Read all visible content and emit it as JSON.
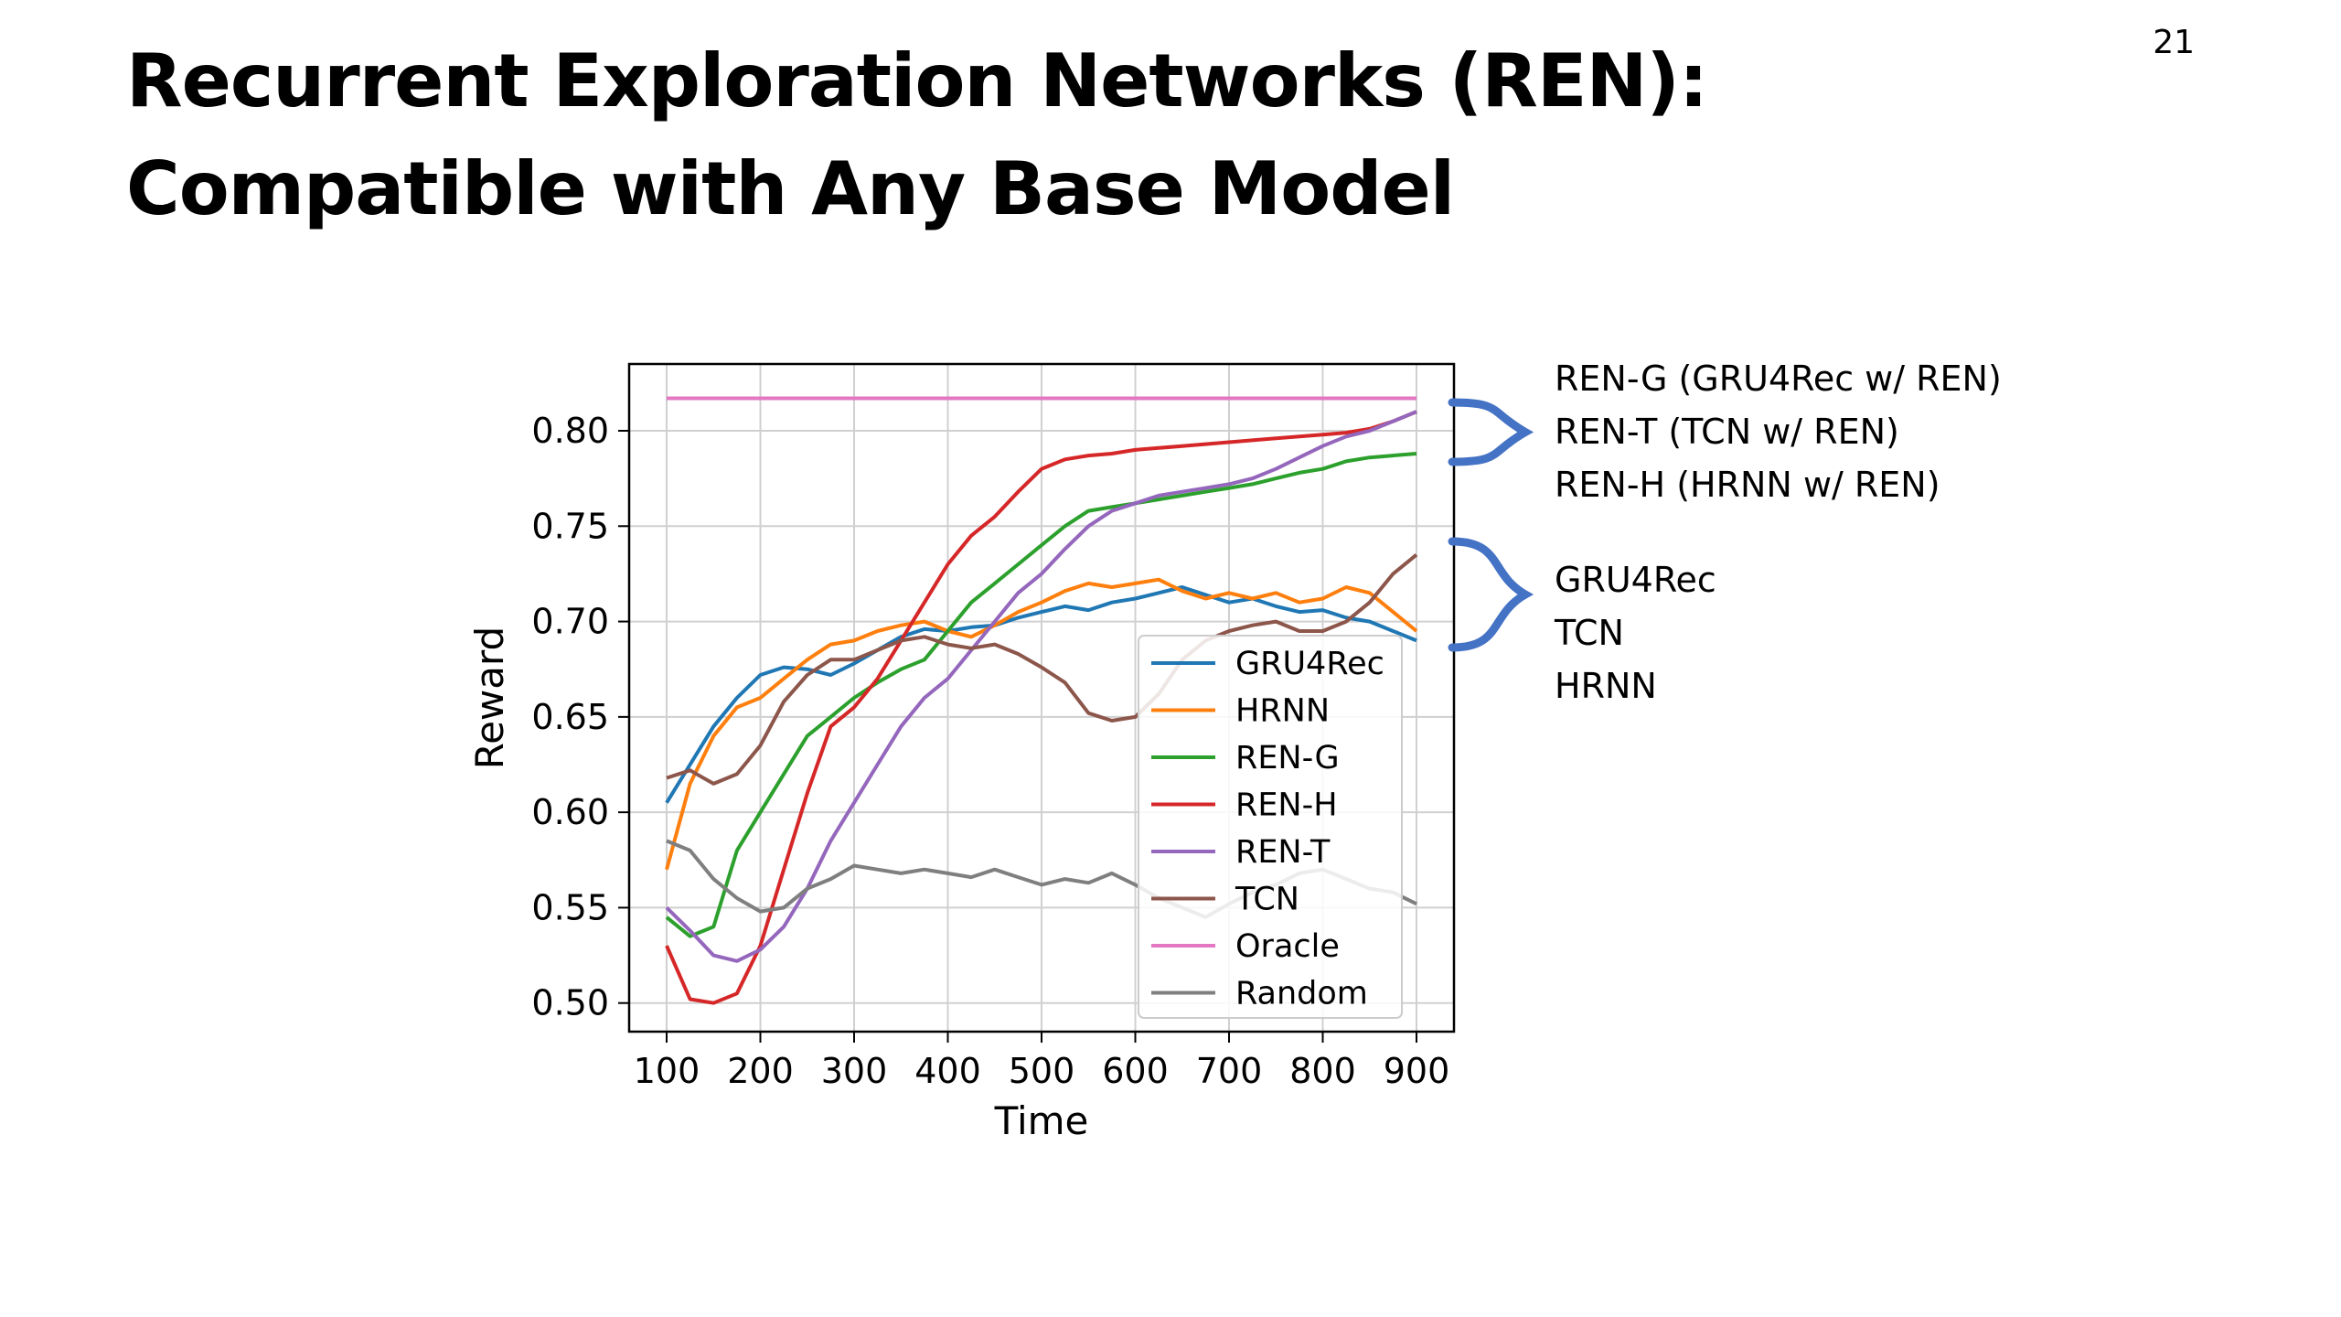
{
  "slide": {
    "title_lines": [
      "Recurrent Exploration Networks (REN):",
      "Compatible with Any Base Model"
    ],
    "page_number": "21"
  },
  "annotations": {
    "ren_group": [
      "REN-G (GRU4Rec w/ REN)",
      "REN-T (TCN w/ REN)",
      "REN-H (HRNN w/ REN)"
    ],
    "base_group": [
      "GRU4Rec",
      "TCN",
      "HRNN"
    ],
    "brace_color": "#4472C4"
  },
  "chart_data": {
    "type": "line",
    "xlabel": "Time",
    "ylabel": "Reward",
    "xlim": [
      60,
      940
    ],
    "ylim": [
      0.485,
      0.835
    ],
    "xticks": [
      100,
      200,
      300,
      400,
      500,
      600,
      700,
      800,
      900
    ],
    "xtick_labels": [
      "100",
      "200",
      "300",
      "400",
      "500",
      "600",
      "700",
      "800",
      "900"
    ],
    "yticks": [
      0.5,
      0.55,
      0.6,
      0.65,
      0.7,
      0.75,
      0.8
    ],
    "ytick_labels": [
      "0.50",
      "0.55",
      "0.60",
      "0.65",
      "0.70",
      "0.75",
      "0.80"
    ],
    "grid": true,
    "legend_position": "lower-right",
    "x": [
      100,
      125,
      150,
      175,
      200,
      225,
      250,
      275,
      300,
      325,
      350,
      375,
      400,
      425,
      450,
      475,
      500,
      525,
      550,
      575,
      600,
      625,
      650,
      675,
      700,
      725,
      750,
      775,
      800,
      825,
      850,
      875,
      900
    ],
    "series": [
      {
        "name": "GRU4Rec",
        "color": "#1f77b4",
        "values": [
          0.605,
          0.625,
          0.645,
          0.66,
          0.672,
          0.676,
          0.675,
          0.672,
          0.678,
          0.685,
          0.692,
          0.696,
          0.695,
          0.697,
          0.698,
          0.702,
          0.705,
          0.708,
          0.706,
          0.71,
          0.712,
          0.715,
          0.718,
          0.714,
          0.71,
          0.712,
          0.708,
          0.705,
          0.706,
          0.702,
          0.7,
          0.695,
          0.69
        ]
      },
      {
        "name": "HRNN",
        "color": "#ff7f0e",
        "values": [
          0.57,
          0.615,
          0.64,
          0.655,
          0.66,
          0.67,
          0.68,
          0.688,
          0.69,
          0.695,
          0.698,
          0.7,
          0.695,
          0.692,
          0.698,
          0.705,
          0.71,
          0.716,
          0.72,
          0.718,
          0.72,
          0.722,
          0.716,
          0.712,
          0.715,
          0.712,
          0.715,
          0.71,
          0.712,
          0.718,
          0.715,
          0.705,
          0.695
        ]
      },
      {
        "name": "REN-G",
        "color": "#2ca02c",
        "values": [
          0.545,
          0.535,
          0.54,
          0.58,
          0.6,
          0.62,
          0.64,
          0.65,
          0.66,
          0.668,
          0.675,
          0.68,
          0.695,
          0.71,
          0.72,
          0.73,
          0.74,
          0.75,
          0.758,
          0.76,
          0.762,
          0.764,
          0.766,
          0.768,
          0.77,
          0.772,
          0.775,
          0.778,
          0.78,
          0.784,
          0.786,
          0.787,
          0.788
        ]
      },
      {
        "name": "REN-H",
        "color": "#d62728",
        "values": [
          0.53,
          0.502,
          0.5,
          0.505,
          0.53,
          0.57,
          0.61,
          0.645,
          0.655,
          0.67,
          0.69,
          0.71,
          0.73,
          0.745,
          0.755,
          0.768,
          0.78,
          0.785,
          0.787,
          0.788,
          0.79,
          0.791,
          0.792,
          0.793,
          0.794,
          0.795,
          0.796,
          0.797,
          0.798,
          0.799,
          0.801,
          0.805,
          0.81
        ]
      },
      {
        "name": "REN-T",
        "color": "#9467bd",
        "values": [
          0.55,
          0.538,
          0.525,
          0.522,
          0.528,
          0.54,
          0.56,
          0.585,
          0.605,
          0.625,
          0.645,
          0.66,
          0.67,
          0.685,
          0.7,
          0.715,
          0.725,
          0.738,
          0.75,
          0.758,
          0.762,
          0.766,
          0.768,
          0.77,
          0.772,
          0.775,
          0.78,
          0.786,
          0.792,
          0.797,
          0.8,
          0.805,
          0.81
        ]
      },
      {
        "name": "TCN",
        "color": "#8c564b",
        "values": [
          0.618,
          0.622,
          0.615,
          0.62,
          0.635,
          0.658,
          0.672,
          0.68,
          0.68,
          0.685,
          0.69,
          0.692,
          0.688,
          0.686,
          0.688,
          0.683,
          0.676,
          0.668,
          0.652,
          0.648,
          0.65,
          0.662,
          0.68,
          0.69,
          0.695,
          0.698,
          0.7,
          0.695,
          0.695,
          0.7,
          0.71,
          0.725,
          0.735
        ]
      },
      {
        "name": "Oracle",
        "color": "#e377c2",
        "values": [
          0.817,
          0.817,
          0.817,
          0.817,
          0.817,
          0.817,
          0.817,
          0.817,
          0.817,
          0.817,
          0.817,
          0.817,
          0.817,
          0.817,
          0.817,
          0.817,
          0.817,
          0.817,
          0.817,
          0.817,
          0.817,
          0.817,
          0.817,
          0.817,
          0.817,
          0.817,
          0.817,
          0.817,
          0.817,
          0.817,
          0.817,
          0.817,
          0.817
        ]
      },
      {
        "name": "Random",
        "color": "#7f7f7f",
        "values": [
          0.585,
          0.58,
          0.565,
          0.555,
          0.548,
          0.55,
          0.56,
          0.565,
          0.572,
          0.57,
          0.568,
          0.57,
          0.568,
          0.566,
          0.57,
          0.566,
          0.562,
          0.565,
          0.563,
          0.568,
          0.562,
          0.555,
          0.55,
          0.545,
          0.552,
          0.558,
          0.562,
          0.568,
          0.57,
          0.565,
          0.56,
          0.558,
          0.552
        ]
      }
    ]
  }
}
